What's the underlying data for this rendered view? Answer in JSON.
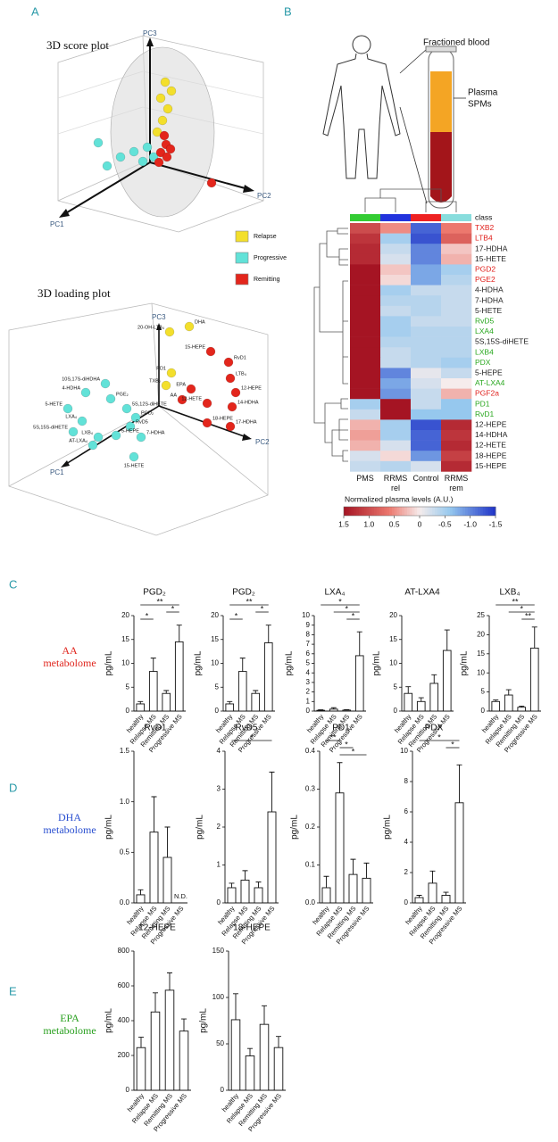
{
  "panel_labels": [
    "A",
    "B",
    "C",
    "D",
    "E"
  ],
  "panel_a": {
    "score_title": "3D score plot",
    "loading_title": "3D loading plot",
    "axes": [
      "PC1",
      "PC2",
      "PC3"
    ],
    "legend": [
      {
        "name": "Relapse",
        "color": "#f3df2c"
      },
      {
        "name": "Progressive",
        "color": "#62e2d8"
      },
      {
        "name": "Remitting",
        "color": "#e3261c"
      }
    ],
    "loading_labels": [
      {
        "text": "20-OH-LTB₄",
        "group": 0
      },
      {
        "text": "DHA",
        "group": 0
      },
      {
        "text": "PD1",
        "group": 0
      },
      {
        "text": "TXB₂",
        "group": 0
      },
      {
        "text": "15-HEPE",
        "group": 2
      },
      {
        "text": "RvD1",
        "group": 2
      },
      {
        "text": "LTB₄",
        "group": 2
      },
      {
        "text": "12-HEPE",
        "group": 2
      },
      {
        "text": "EPA",
        "group": 2
      },
      {
        "text": "AA",
        "group": 2
      },
      {
        "text": "12-HETE",
        "group": 2
      },
      {
        "text": "14-HDHA",
        "group": 2
      },
      {
        "text": "18-HEPE",
        "group": 2
      },
      {
        "text": "17-HDHA",
        "group": 2
      },
      {
        "text": "10S,17S-diHDHA",
        "group": 1
      },
      {
        "text": "4-HDHA",
        "group": 1
      },
      {
        "text": "PGE₂",
        "group": 1
      },
      {
        "text": "5S,12S-diHETE",
        "group": 1
      },
      {
        "text": "5-HETE",
        "group": 1
      },
      {
        "text": "PGD₂",
        "group": 1
      },
      {
        "text": "LXA₄",
        "group": 1
      },
      {
        "text": "RvD5",
        "group": 1
      },
      {
        "text": "5S,15S-diHETE",
        "group": 1
      },
      {
        "text": "LXB₄",
        "group": 1
      },
      {
        "text": "5-HEPE",
        "group": 1
      },
      {
        "text": "AT-LXA₄",
        "group": 1
      },
      {
        "text": "7-HDHA",
        "group": 1
      },
      {
        "text": "15-HETE",
        "group": 1
      }
    ]
  },
  "diagram": {
    "tube_label": "Fractioned blood",
    "plasma_label": [
      "Plasma",
      "SPMs"
    ]
  },
  "metabolome_labels": [
    {
      "lines": [
        "AA",
        "metabolome"
      ],
      "color": "#e0261e"
    },
    {
      "lines": [
        "DHA",
        "metabolome"
      ],
      "color": "#2a4fd0"
    },
    {
      "lines": [
        "EPA",
        "metabolome"
      ],
      "color": "#2aa020"
    }
  ],
  "chart_data": [
    {
      "type": "heatmap",
      "columns": [
        [
          "PMS"
        ],
        [
          "RRMS",
          "rel"
        ],
        [
          "Control"
        ],
        [
          "RRMS",
          "rem"
        ]
      ],
      "class_label": "class",
      "class_colors": [
        "#33cc33",
        "#2233dd",
        "#ee2222",
        "#88dddd"
      ],
      "rows": [
        {
          "name": "TXB2",
          "color": "#e0201c",
          "values": [
            1.0,
            0.5,
            -1.2,
            0.6
          ]
        },
        {
          "name": "LTB4",
          "color": "#e0201c",
          "values": [
            1.2,
            -0.5,
            -1.3,
            0.8
          ]
        },
        {
          "name": "17-HDHA",
          "color": "#222222",
          "values": [
            1.3,
            -0.3,
            -1.0,
            0.2
          ]
        },
        {
          "name": "15-HETE",
          "color": "#222222",
          "values": [
            1.3,
            -0.2,
            -1.0,
            0.3
          ]
        },
        {
          "name": "PGD2",
          "color": "#e0201c",
          "values": [
            1.5,
            0.2,
            -0.8,
            -0.5
          ]
        },
        {
          "name": "PGE2",
          "color": "#e0201c",
          "values": [
            1.5,
            0.1,
            -0.8,
            -0.4
          ]
        },
        {
          "name": "4-HDHA",
          "color": "#222222",
          "values": [
            1.5,
            -0.5,
            -0.3,
            -0.3
          ]
        },
        {
          "name": "7-HDHA",
          "color": "#222222",
          "values": [
            1.5,
            -0.4,
            -0.4,
            -0.3
          ]
        },
        {
          "name": "5-HETE",
          "color": "#222222",
          "values": [
            1.5,
            -0.3,
            -0.4,
            -0.3
          ]
        },
        {
          "name": "RvD5",
          "color": "#2aa820",
          "values": [
            1.5,
            -0.5,
            -0.3,
            -0.3
          ]
        },
        {
          "name": "LXA4",
          "color": "#2aa820",
          "values": [
            1.5,
            -0.5,
            -0.4,
            -0.4
          ]
        },
        {
          "name": "5S,15S-diHETE",
          "color": "#222222",
          "values": [
            1.5,
            -0.4,
            -0.4,
            -0.4
          ]
        },
        {
          "name": "LXB4",
          "color": "#2aa820",
          "values": [
            1.5,
            -0.3,
            -0.4,
            -0.4
          ]
        },
        {
          "name": "PDX",
          "color": "#2aa820",
          "values": [
            1.5,
            -0.3,
            -0.4,
            -0.5
          ]
        },
        {
          "name": "5-HEPE",
          "color": "#222222",
          "values": [
            1.5,
            -1.0,
            -0.1,
            -0.3
          ]
        },
        {
          "name": "AT-LXA4",
          "color": "#2aa820",
          "values": [
            1.5,
            -0.8,
            -0.2,
            0.0
          ]
        },
        {
          "name": "PGF2a",
          "color": "#e0201c",
          "values": [
            1.5,
            -0.9,
            -0.3,
            0.3
          ]
        },
        {
          "name": "PD1",
          "color": "#2aa820",
          "values": [
            -0.5,
            1.5,
            -0.3,
            -0.6
          ]
        },
        {
          "name": "RvD1",
          "color": "#2aa820",
          "values": [
            -0.3,
            1.5,
            -0.6,
            -0.6
          ]
        },
        {
          "name": "12-HEPE",
          "color": "#222222",
          "values": [
            0.3,
            -0.5,
            -1.3,
            1.3
          ]
        },
        {
          "name": "14-HDHA",
          "color": "#222222",
          "values": [
            0.4,
            -0.5,
            -1.2,
            1.2
          ]
        },
        {
          "name": "12-HETE",
          "color": "#222222",
          "values": [
            0.3,
            -0.2,
            -1.2,
            1.3
          ]
        },
        {
          "name": "18-HEPE",
          "color": "#222222",
          "values": [
            -0.2,
            0.1,
            -0.9,
            1.1
          ]
        },
        {
          "name": "15-HEPE",
          "color": "#222222",
          "values": [
            -0.3,
            -0.4,
            -0.2,
            1.3
          ]
        }
      ],
      "colorbar_label": "Normalized plasma levels (A.U.)",
      "clim": [
        1.5,
        -1.5
      ],
      "cticks": [
        1.5,
        {
          "value": 1,
          "label": "1.0"
        },
        0.5,
        0,
        -0.5,
        {
          "value": -1,
          "label": "-1.0"
        },
        -1.5
      ]
    },
    {
      "type": "bar",
      "title": "PGD₂",
      "ylabel": "pg/mL",
      "categories": [
        "healthy",
        "Relapse MS",
        "Remitting MS",
        "Progressive MS"
      ],
      "values": [
        1.5,
        8.3,
        3.7,
        14.5
      ],
      "errors": [
        0.5,
        2.8,
        0.6,
        3.5
      ],
      "ylim": [
        0,
        20
      ],
      "yticks": [
        0,
        5,
        10,
        15,
        20
      ],
      "significance": [
        {
          "label": "**",
          "pair": [
            0,
            3
          ]
        },
        {
          "label": "*",
          "pair": [
            2,
            3
          ]
        },
        {
          "label": "*",
          "pair": [
            0,
            1
          ]
        }
      ]
    },
    {
      "type": "bar",
      "title": "PGD₂",
      "ylabel": "pg/mL",
      "categories": [
        "healthy",
        "Relapse MS",
        "Remitting MS",
        "Progressive MS"
      ],
      "values": [
        1.5,
        8.3,
        3.7,
        14.3
      ],
      "errors": [
        0.5,
        2.8,
        0.6,
        3.7
      ],
      "ylim": [
        0,
        20
      ],
      "yticks": [
        0,
        5,
        10,
        15,
        20
      ],
      "significance": [
        {
          "label": "**",
          "pair": [
            0,
            3
          ]
        },
        {
          "label": "*",
          "pair": [
            2,
            3
          ]
        },
        {
          "label": "*",
          "pair": [
            0,
            1
          ]
        }
      ]
    },
    {
      "type": "bar",
      "title": "LXA₄",
      "ylabel": "pg/mL",
      "categories": [
        "healthy",
        "Relapse MS",
        "Remitting MS",
        "Progressive MS"
      ],
      "values": [
        0.08,
        0.2,
        0.1,
        5.8
      ],
      "errors": [
        0.05,
        0.15,
        0.05,
        2.5
      ],
      "ylim": [
        0,
        10
      ],
      "yticks": [
        0,
        1,
        2,
        3,
        4,
        5,
        6,
        7,
        8,
        9,
        10
      ],
      "significance": [
        {
          "label": "*",
          "pair": [
            0,
            3
          ]
        },
        {
          "label": "*",
          "pair": [
            1,
            3
          ]
        },
        {
          "label": "*",
          "pair": [
            2,
            3
          ]
        }
      ]
    },
    {
      "type": "bar",
      "title": "AT-LXA4",
      "ylabel": "pg/mL",
      "categories": [
        "healthy",
        "Relapse MS",
        "Remitting MS",
        "Progressive MS"
      ],
      "values": [
        3.7,
        2.0,
        5.8,
        12.7
      ],
      "errors": [
        1.4,
        0.8,
        1.8,
        4.3
      ],
      "ylim": [
        0,
        20
      ],
      "yticks": [
        0,
        5,
        10,
        15,
        20
      ],
      "significance": []
    },
    {
      "type": "bar",
      "title": "LXB₄",
      "ylabel": "pg/mL",
      "categories": [
        "healthy",
        "Relapse MS",
        "Remitting MS",
        "Progressive MS"
      ],
      "values": [
        2.5,
        4.2,
        1.0,
        16.5
      ],
      "errors": [
        0.4,
        1.4,
        0.3,
        5.5
      ],
      "ylim": [
        0,
        25
      ],
      "yticks": [
        0,
        5,
        10,
        15,
        20,
        25
      ],
      "significance": [
        {
          "label": "**",
          "pair": [
            0,
            3
          ]
        },
        {
          "label": "*",
          "pair": [
            1,
            3
          ]
        },
        {
          "label": "**",
          "pair": [
            2,
            3
          ]
        }
      ]
    },
    {
      "type": "bar",
      "title": "RvD1",
      "ylabel": "pg/mL",
      "categories": [
        "healthy",
        "Relapse MS",
        "Remitting MS",
        "Progressive MS"
      ],
      "values": [
        0.08,
        0.7,
        0.45,
        null
      ],
      "errors": [
        0.05,
        0.35,
        0.3,
        null
      ],
      "value_labels": [
        null,
        null,
        null,
        "N.D."
      ],
      "ylim": [
        0,
        1.5
      ],
      "yticks": [
        {
          "value": 0,
          "label": "0.0"
        },
        0.5,
        {
          "value": 1,
          "label": "1.0"
        },
        1.5
      ],
      "significance": []
    },
    {
      "type": "bar",
      "title": "RvD5",
      "ylabel": "pg/mL",
      "categories": [
        "healthy",
        "Relapse MS",
        "Remitting MS",
        "Progressive MS"
      ],
      "values": [
        0.4,
        0.6,
        0.4,
        2.4
      ],
      "errors": [
        0.12,
        0.25,
        0.15,
        1.05
      ],
      "ylim": [
        0,
        4
      ],
      "yticks": [
        0,
        1,
        2,
        3,
        4
      ],
      "significance": [
        {
          "label": "*",
          "pair": [
            0,
            3
          ]
        }
      ]
    },
    {
      "type": "bar",
      "title": "PD1",
      "ylabel": "pg/mL",
      "categories": [
        "healthy",
        "Relapse MS",
        "Remitting MS",
        "Progressive MS"
      ],
      "values": [
        0.04,
        0.29,
        0.075,
        0.065
      ],
      "errors": [
        0.03,
        0.08,
        0.04,
        0.04
      ],
      "ylim": [
        0,
        0.4
      ],
      "yticks": [
        {
          "value": 0,
          "label": "0.0"
        },
        0.1,
        0.2,
        0.3,
        0.4
      ],
      "significance": [
        {
          "label": "**",
          "pair": [
            0,
            1
          ]
        },
        {
          "label": "*",
          "pair": [
            1,
            2
          ]
        },
        {
          "label": "*",
          "pair": [
            1,
            3
          ]
        }
      ]
    },
    {
      "type": "bar",
      "title": "PDX",
      "ylabel": "pg/mL",
      "categories": [
        "healthy",
        "Relapse MS",
        "Remitting MS",
        "Progressive MS"
      ],
      "values": [
        0.35,
        1.3,
        0.5,
        6.6
      ],
      "errors": [
        0.15,
        0.8,
        0.2,
        2.5
      ],
      "ylim": [
        0,
        10
      ],
      "yticks": [
        0,
        2,
        4,
        6,
        8,
        10
      ],
      "significance": [
        {
          "label": "*",
          "pair": [
            0,
            3
          ]
        },
        {
          "label": "*",
          "pair": [
            2,
            3
          ]
        }
      ]
    },
    {
      "type": "bar",
      "title": "12-HEPE",
      "ylabel": "pg/mL",
      "categories": [
        "healthy",
        "Relapse MS",
        "Remitting MS",
        "Progressive MS"
      ],
      "values": [
        245,
        450,
        575,
        340
      ],
      "errors": [
        60,
        110,
        100,
        70
      ],
      "ylim": [
        0,
        800
      ],
      "yticks": [
        0,
        200,
        400,
        600,
        800
      ],
      "significance": []
    },
    {
      "type": "bar",
      "title": "18-HEPE",
      "ylabel": "pg/mL",
      "categories": [
        "healthy",
        "Relapse MS",
        "Remitting MS",
        "Progressive MS"
      ],
      "values": [
        76,
        37,
        71,
        46
      ],
      "errors": [
        28,
        8,
        20,
        12
      ],
      "ylim": [
        0,
        150
      ],
      "yticks": [
        0,
        50,
        100,
        150
      ],
      "significance": []
    }
  ]
}
